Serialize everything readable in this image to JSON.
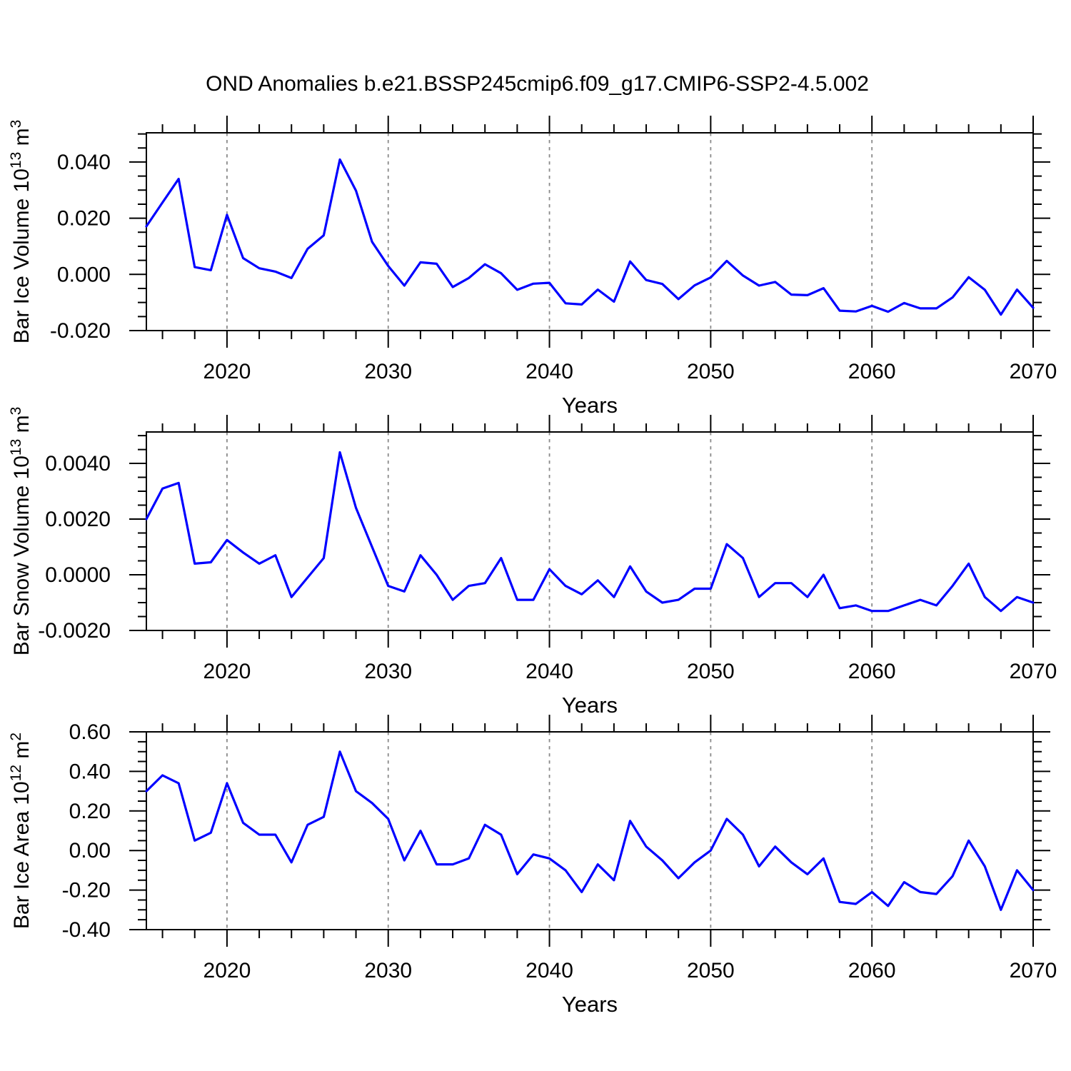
{
  "title": "OND Anomalies b.e21.BSSP245cmip6.f09_g17.CMIP6-SSP2-4.5.002",
  "colors": {
    "line": "#0000ff",
    "gridline": "#8a8a8a",
    "axis": "#000000",
    "background": "#ffffff"
  },
  "years": [
    2015,
    2016,
    2017,
    2018,
    2019,
    2020,
    2021,
    2022,
    2023,
    2024,
    2025,
    2026,
    2027,
    2028,
    2029,
    2030,
    2031,
    2032,
    2033,
    2034,
    2035,
    2036,
    2037,
    2038,
    2039,
    2040,
    2041,
    2042,
    2043,
    2044,
    2045,
    2046,
    2047,
    2048,
    2049,
    2050,
    2051,
    2052,
    2053,
    2054,
    2055,
    2056,
    2057,
    2058,
    2059,
    2060,
    2061,
    2062,
    2063,
    2064,
    2065,
    2066,
    2067,
    2068,
    2069,
    2070
  ],
  "chart_data": [
    {
      "id": "ice-volume",
      "type": "line",
      "title": "",
      "xlabel": "Years",
      "ylabel": "Bar Ice Volume 10^13 m^3",
      "ylabel_segments": [
        {
          "t": "Bar Ice Volume 10"
        },
        {
          "t": "13",
          "sup": true
        },
        {
          "t": " m"
        },
        {
          "t": "3",
          "sup": true
        }
      ],
      "xlim": [
        2015,
        2070
      ],
      "ylim": [
        -0.02,
        0.0504
      ],
      "xtick_major": [
        2020,
        2030,
        2040,
        2050,
        2060,
        2070
      ],
      "xtick_labels": [
        "2020",
        "2030",
        "2040",
        "2050",
        "2060",
        "2070"
      ],
      "xtick_minor_step": 2,
      "grid_decades": [
        2020,
        2030,
        2040,
        2050,
        2060
      ],
      "ytick_major": [
        0.04,
        0.02,
        0.0,
        -0.02
      ],
      "ytick_labels": [
        "0.040",
        "0.020",
        "0.000",
        "-0.020"
      ],
      "ytick_minor_step": 0.005,
      "legend": "none",
      "grid": "vertical-dashed-decades",
      "values": [
        0.0171,
        0.0256,
        0.034,
        0.0026,
        0.0015,
        0.0212,
        0.0058,
        0.0022,
        0.001,
        -0.0013,
        0.0091,
        0.0139,
        0.0409,
        0.0298,
        0.0116,
        0.003,
        -0.004,
        0.0043,
        0.0038,
        -0.0045,
        -0.0013,
        0.0036,
        0.0004,
        -0.0055,
        -0.0033,
        -0.003,
        -0.0103,
        -0.0107,
        -0.0054,
        -0.0097,
        0.0046,
        -0.002,
        -0.0034,
        -0.0088,
        -0.0039,
        -0.0011,
        0.0048,
        -0.0004,
        -0.004,
        -0.0027,
        -0.0072,
        -0.0074,
        -0.0049,
        -0.0129,
        -0.0132,
        -0.0112,
        -0.0133,
        -0.0102,
        -0.0121,
        -0.0121,
        -0.0082,
        -0.001,
        -0.0055,
        -0.0143,
        -0.0054,
        -0.0119
      ]
    },
    {
      "id": "snow-volume",
      "type": "line",
      "title": "",
      "xlabel": "Years",
      "ylabel": "Bar Snow Volume 10^13 m^3",
      "ylabel_segments": [
        {
          "t": "Bar Snow Volume 10"
        },
        {
          "t": "13",
          "sup": true
        },
        {
          "t": " m"
        },
        {
          "t": "3",
          "sup": true
        }
      ],
      "xlim": [
        2015,
        2070
      ],
      "ylim": [
        -0.002,
        0.00513
      ],
      "xtick_major": [
        2020,
        2030,
        2040,
        2050,
        2060,
        2070
      ],
      "xtick_labels": [
        "2020",
        "2030",
        "2040",
        "2050",
        "2060",
        "2070"
      ],
      "xtick_minor_step": 2,
      "grid_decades": [
        2020,
        2030,
        2040,
        2050,
        2060
      ],
      "ytick_major": [
        0.004,
        0.002,
        0.0,
        -0.002
      ],
      "ytick_labels": [
        "0.0040",
        "0.0020",
        "0.0000",
        "-0.0020"
      ],
      "ytick_minor_step": 0.0005,
      "legend": "none",
      "grid": "vertical-dashed-decades",
      "values": [
        0.002,
        0.0031,
        0.0033,
        0.0004,
        0.00045,
        0.00125,
        0.0008,
        0.0004,
        0.0007,
        -0.0008,
        -0.0001,
        0.0006,
        0.0044,
        0.0024,
        0.001,
        -0.0004,
        -0.0006,
        0.0007,
        0.0,
        -0.0009,
        -0.0004,
        -0.0003,
        0.0006,
        -0.0009,
        -0.0009,
        0.0002,
        -0.0004,
        -0.0007,
        -0.0002,
        -0.0008,
        0.0003,
        -0.0006,
        -0.001,
        -0.0009,
        -0.0005,
        -0.0005,
        0.0011,
        0.0006,
        -0.0008,
        -0.0003,
        -0.0003,
        -0.0008,
        0.0,
        -0.0012,
        -0.0011,
        -0.0013,
        -0.0013,
        -0.0011,
        -0.0009,
        -0.0011,
        -0.0004,
        0.0004,
        -0.0008,
        -0.0013,
        -0.0008,
        -0.001
      ]
    },
    {
      "id": "ice-area",
      "type": "line",
      "title": "",
      "xlabel": "Years",
      "ylabel": "Bar Ice Area 10^12 m^2",
      "ylabel_segments": [
        {
          "t": "Bar Ice Area 10"
        },
        {
          "t": "12",
          "sup": true
        },
        {
          "t": " m"
        },
        {
          "t": "2",
          "sup": true
        }
      ],
      "xlim": [
        2015,
        2070
      ],
      "ylim": [
        -0.4,
        0.6
      ],
      "xtick_major": [
        2020,
        2030,
        2040,
        2050,
        2060,
        2070
      ],
      "xtick_labels": [
        "2020",
        "2030",
        "2040",
        "2050",
        "2060",
        "2070"
      ],
      "xtick_minor_step": 2,
      "grid_decades": [
        2020,
        2030,
        2040,
        2050,
        2060
      ],
      "ytick_major": [
        0.6,
        0.4,
        0.2,
        0.0,
        -0.2,
        -0.4
      ],
      "ytick_labels": [
        "0.60",
        "0.40",
        "0.20",
        "0.00",
        "-0.20",
        "-0.40"
      ],
      "ytick_minor_step": 0.05,
      "legend": "none",
      "grid": "vertical-dashed-decades",
      "values": [
        0.3,
        0.38,
        0.34,
        0.05,
        0.09,
        0.34,
        0.14,
        0.08,
        0.08,
        -0.06,
        0.13,
        0.17,
        0.5,
        0.3,
        0.24,
        0.16,
        -0.05,
        0.1,
        -0.07,
        -0.07,
        -0.04,
        0.13,
        0.08,
        -0.12,
        -0.02,
        -0.04,
        -0.1,
        -0.21,
        -0.07,
        -0.15,
        0.15,
        0.02,
        -0.05,
        -0.14,
        -0.06,
        0.0,
        0.16,
        0.08,
        -0.08,
        0.02,
        -0.06,
        -0.12,
        -0.04,
        -0.26,
        -0.27,
        -0.21,
        -0.28,
        -0.16,
        -0.21,
        -0.22,
        -0.13,
        0.05,
        -0.08,
        -0.3,
        -0.1,
        -0.2
      ]
    }
  ]
}
